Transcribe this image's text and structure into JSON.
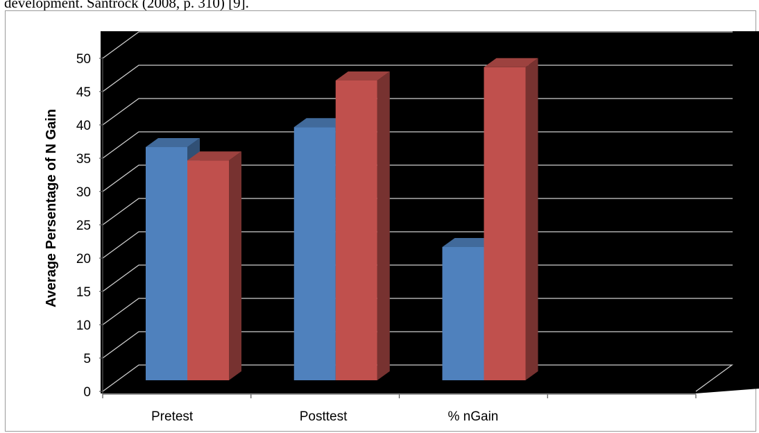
{
  "document": {
    "top_text": "development. Santrock (2008, p. 310) [9]."
  },
  "chart_data": {
    "type": "bar",
    "categories": [
      "Pretest",
      "Posttest",
      "% nGain"
    ],
    "series": [
      {
        "values": [
          35,
          38,
          20
        ],
        "color": "#4f81bd"
      },
      {
        "values": [
          33,
          45,
          47
        ],
        "color": "#c0504d"
      }
    ],
    "ylabel": "Average Persentage of  N Gain",
    "ylim": [
      0,
      50
    ],
    "yticks": [
      0,
      5,
      10,
      15,
      20,
      25,
      30,
      35,
      40,
      45,
      50
    ],
    "grid": true,
    "background": "#000000",
    "grid_color": "#cfcfcf",
    "legend": "none"
  }
}
